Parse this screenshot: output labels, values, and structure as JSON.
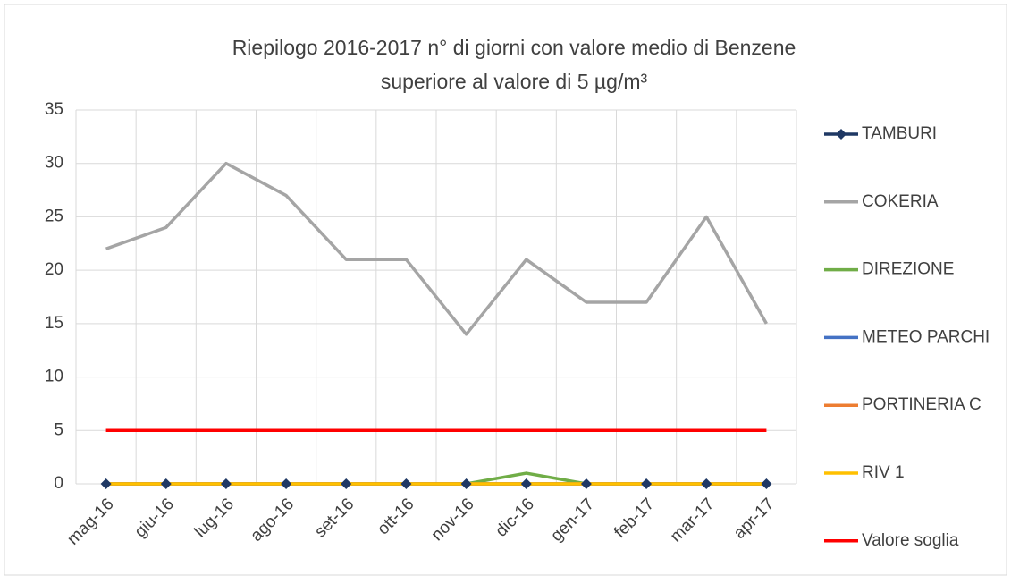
{
  "chart_data": {
    "type": "line",
    "title": "Riepilogo 2016-2017 n° di giorni con valore medio di Benzene",
    "subtitle": "superiore al valore di 5 µg/m³",
    "categories": [
      "mag-16",
      "giu-16",
      "lug-16",
      "ago-16",
      "set-16",
      "ott-16",
      "nov-16",
      "dic-16",
      "gen-17",
      "feb-17",
      "mar-17",
      "apr-17"
    ],
    "series": [
      {
        "name": "TAMBURI",
        "color": "#1f3864",
        "marker": "diamond",
        "values": [
          0,
          0,
          0,
          0,
          0,
          0,
          0,
          0,
          0,
          0,
          0,
          0
        ]
      },
      {
        "name": "COKERIA",
        "color": "#a5a5a5",
        "values": [
          22,
          24,
          30,
          27,
          21,
          21,
          14,
          21,
          17,
          17,
          25,
          15
        ]
      },
      {
        "name": "DIREZIONE",
        "color": "#70ad47",
        "values": [
          0,
          0,
          0,
          0,
          0,
          0,
          0,
          1,
          0,
          0,
          0,
          0
        ]
      },
      {
        "name": "METEO PARCHI",
        "color": "#4472c4",
        "values": [
          0,
          0,
          0,
          0,
          0,
          0,
          0,
          0,
          0,
          0,
          0,
          0
        ]
      },
      {
        "name": "PORTINERIA C",
        "color": "#ed7d31",
        "values": [
          0,
          0,
          0,
          0,
          0,
          0,
          0,
          0,
          0,
          0,
          0,
          0
        ]
      },
      {
        "name": "RIV 1",
        "color": "#ffc000",
        "values": [
          0,
          0,
          0,
          0,
          0,
          0,
          0,
          0,
          0,
          0,
          0,
          0
        ]
      },
      {
        "name": "Valore soglia",
        "color": "#ff0000",
        "values": [
          5,
          5,
          5,
          5,
          5,
          5,
          5,
          5,
          5,
          5,
          5,
          5
        ]
      }
    ],
    "ylim": [
      0,
      35
    ],
    "yticks": [
      0,
      5,
      10,
      15,
      20,
      25,
      30,
      35
    ],
    "grid": true,
    "legend": "right"
  }
}
